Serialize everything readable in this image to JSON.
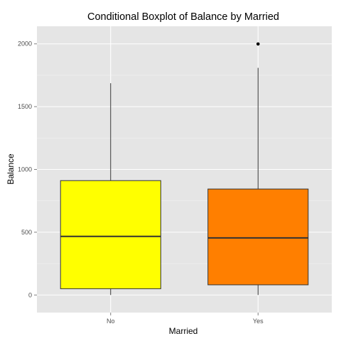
{
  "chart_data": {
    "type": "boxplot",
    "title": "Conditional Boxplot of Balance by Married",
    "xlabel": "Married",
    "ylabel": "Balance",
    "categories": [
      "No",
      "Yes"
    ],
    "ylim": [
      -140,
      2140
    ],
    "yticks": [
      0,
      500,
      1000,
      1500,
      2000
    ],
    "grid": true,
    "legend": "none",
    "boxes": [
      {
        "category": "No",
        "lower_whisker": 0,
        "q1": 50,
        "median": 467,
        "q3": 911,
        "upper_whisker": 1687,
        "outliers": [],
        "color": "#ffff00"
      },
      {
        "category": "Yes",
        "lower_whisker": 0,
        "q1": 81,
        "median": 455,
        "q3": 844,
        "upper_whisker": 1809,
        "outliers": [
          1999
        ],
        "color": "#ff7f00"
      }
    ],
    "colors": {
      "panel": "#e5e5e5",
      "grid_major": "#ffffff",
      "grid_minor": "#f2f2f2",
      "stroke": "#333333"
    }
  }
}
